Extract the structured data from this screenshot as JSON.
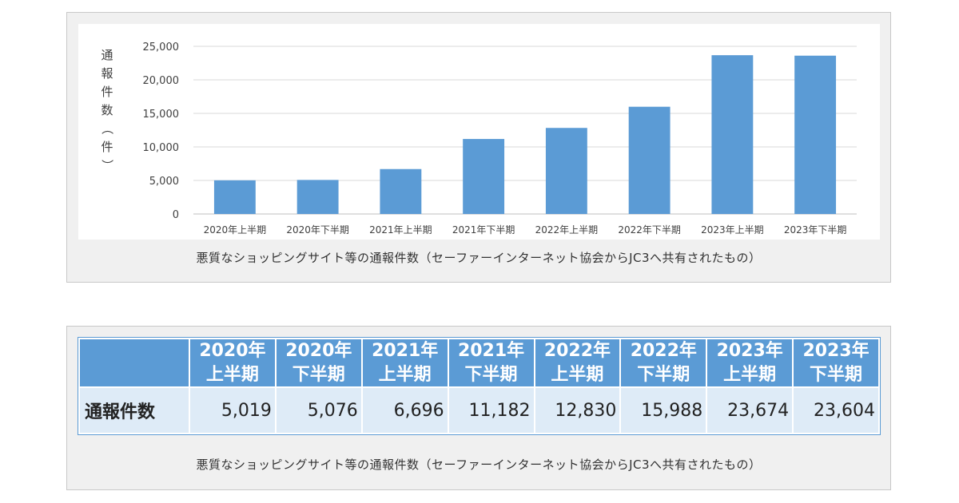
{
  "chart_data": {
    "type": "bar",
    "categories": [
      "2020年上半期",
      "2020年下半期",
      "2021年上半期",
      "2021年下半期",
      "2022年上半期",
      "2022年下半期",
      "2023年上半期",
      "2023年下半期"
    ],
    "values": [
      5019,
      5076,
      6696,
      11182,
      12830,
      15988,
      23674,
      23604
    ],
    "ylabel_chars": [
      "通",
      "報",
      "件",
      "数",
      "（",
      "件",
      "）"
    ],
    "ylim": [
      0,
      25000
    ],
    "yticks": [
      0,
      5000,
      10000,
      15000,
      20000,
      25000
    ],
    "ytick_labels": [
      "0",
      "5,000",
      "10,000",
      "15,000",
      "20,000",
      "25,000"
    ],
    "grid": true,
    "bar_color": "#5b9bd5",
    "grid_color": "#d9d9d9"
  },
  "chart_caption": "悪質なショッピングサイト等の通報件数（セーファーインターネット協会からJC3へ共有されたもの）",
  "table": {
    "columns": [
      {
        "year": "2020年",
        "half": "上半期"
      },
      {
        "year": "2020年",
        "half": "下半期"
      },
      {
        "year": "2021年",
        "half": "上半期"
      },
      {
        "year": "2021年",
        "half": "下半期"
      },
      {
        "year": "2022年",
        "half": "上半期"
      },
      {
        "year": "2022年",
        "half": "下半期"
      },
      {
        "year": "2023年",
        "half": "上半期"
      },
      {
        "year": "2023年",
        "half": "下半期"
      }
    ],
    "row_label": "通報件数",
    "row_values": [
      "5,019",
      "5,076",
      "6,696",
      "11,182",
      "12,830",
      "15,988",
      "23,674",
      "23,604"
    ]
  },
  "table_caption": "悪質なショッピングサイト等の通報件数（セーファーインターネット協会からJC3へ共有されたもの）"
}
